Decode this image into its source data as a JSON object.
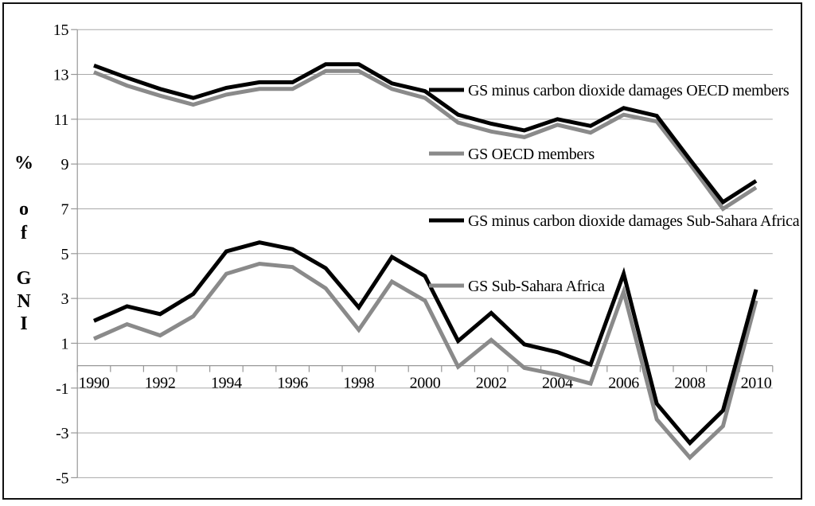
{
  "figure": {
    "background_color": "#ffffff",
    "border_color": "#111111"
  },
  "chart_data": {
    "type": "line",
    "title": "",
    "xlabel": "",
    "ylabel": "% of GNI",
    "ylabel_stacked": [
      "%",
      "o",
      "f",
      "G",
      "N",
      "I"
    ],
    "grid": "horizontal",
    "legend_position": "inside-right",
    "xlim": [
      1990,
      2010
    ],
    "ylim": [
      -5,
      15
    ],
    "x": [
      1990,
      1991,
      1992,
      1993,
      1994,
      1995,
      1996,
      1997,
      1998,
      1999,
      2000,
      2001,
      2002,
      2003,
      2004,
      2005,
      2006,
      2007,
      2008,
      2009,
      2010
    ],
    "x_tick_labels": [
      "1990",
      "1992",
      "1994",
      "1996",
      "1998",
      "2000",
      "2002",
      "2004",
      "2006",
      "2008",
      "2010"
    ],
    "y_ticks": [
      15,
      13,
      11,
      9,
      7,
      5,
      3,
      1,
      -1,
      -3,
      -5
    ],
    "colors": {
      "black_series": "#000000",
      "gray_series": "#8a8a8a",
      "gridline": "#a9a9a9",
      "axis": "#979797",
      "text": "#000000"
    },
    "series": [
      {
        "name": "GS minus carbon dioxide damages OECD members",
        "color": "#000000",
        "values": [
          13.4,
          12.85,
          12.35,
          11.95,
          12.4,
          12.65,
          12.65,
          13.45,
          13.45,
          12.6,
          12.25,
          11.2,
          10.8,
          10.5,
          11.0,
          10.7,
          11.5,
          11.15,
          9.2,
          7.3,
          8.25
        ]
      },
      {
        "name": "GS OECD members",
        "color": "#8a8a8a",
        "values": [
          13.1,
          12.5,
          12.05,
          11.65,
          12.1,
          12.35,
          12.35,
          13.15,
          13.15,
          12.35,
          11.95,
          10.85,
          10.45,
          10.2,
          10.75,
          10.4,
          11.2,
          10.9,
          9.0,
          7.0,
          7.95
        ]
      },
      {
        "name": "GS minus carbon dioxide damages Sub-Sahara Africa",
        "color": "#000000",
        "values": [
          2.0,
          2.65,
          2.3,
          3.2,
          5.1,
          5.5,
          5.2,
          4.35,
          2.6,
          4.85,
          4.0,
          1.1,
          2.35,
          0.95,
          0.6,
          0.05,
          4.1,
          -1.7,
          -3.45,
          -2.0,
          3.4
        ]
      },
      {
        "name": "GS Sub-Sahara Africa",
        "color": "#8a8a8a",
        "values": [
          1.2,
          1.85,
          1.35,
          2.2,
          4.1,
          4.55,
          4.4,
          3.45,
          1.6,
          3.75,
          2.9,
          -0.05,
          1.15,
          -0.1,
          -0.4,
          -0.8,
          3.3,
          -2.4,
          -4.1,
          -2.7,
          2.9
        ]
      }
    ]
  }
}
